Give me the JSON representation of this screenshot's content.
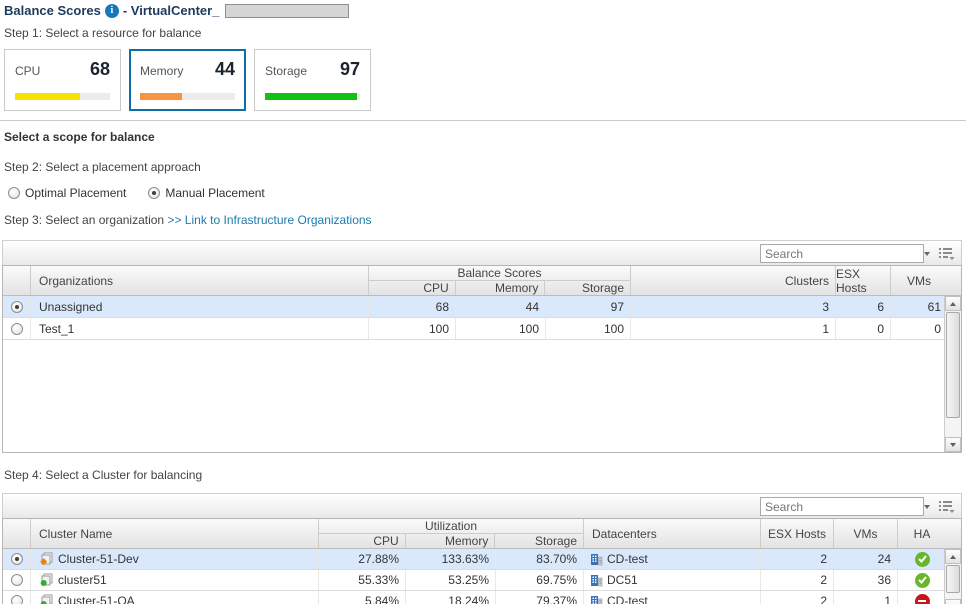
{
  "header": {
    "title": "Balance Scores",
    "suffix": "- VirtualCenter_",
    "info_icon": "info-icon"
  },
  "step1": {
    "label": "Step 1: Select a resource for balance",
    "cards": [
      {
        "name": "CPU",
        "value": "68",
        "pct": 68,
        "color": "#f6e300",
        "selected": false
      },
      {
        "name": "Memory",
        "value": "44",
        "pct": 44,
        "color": "#f5953e",
        "selected": true
      },
      {
        "name": "Storage",
        "value": "97",
        "pct": 97,
        "color": "#12c212",
        "selected": false
      }
    ]
  },
  "scope_header": "Select a scope for balance",
  "step2": {
    "label": "Step 2: Select a placement approach",
    "options": [
      {
        "label": "Optimal Placement",
        "selected": false
      },
      {
        "label": "Manual Placement",
        "selected": true
      }
    ]
  },
  "step3": {
    "label": "Step 3: Select an organization",
    "link": ">> Link to Infrastructure Organizations"
  },
  "org_table": {
    "search_placeholder": "Search",
    "group_header": "Balance Scores",
    "columns": {
      "organizations": "Organizations",
      "cpu": "CPU",
      "memory": "Memory",
      "storage": "Storage",
      "clusters": "Clusters",
      "esx_hosts": "ESX Hosts",
      "vms": "VMs"
    },
    "rows": [
      {
        "selected": true,
        "organization": "Unassigned",
        "cpu": "68",
        "memory": "44",
        "storage": "97",
        "clusters": "3",
        "esx_hosts": "6",
        "vms": "61"
      },
      {
        "selected": false,
        "organization": "Test_1",
        "cpu": "100",
        "memory": "100",
        "storage": "100",
        "clusters": "1",
        "esx_hosts": "0",
        "vms": "0"
      }
    ]
  },
  "step4": {
    "label": "Step 4: Select a Cluster for balancing"
  },
  "cluster_table": {
    "search_placeholder": "Search",
    "group_header": "Utilization",
    "columns": {
      "name": "Cluster Name",
      "cpu": "CPU",
      "memory": "Memory",
      "storage": "Storage",
      "datacenters": "Datacenters",
      "esx_hosts": "ESX Hosts",
      "vms": "VMs",
      "ha": "HA"
    },
    "rows": [
      {
        "selected": true,
        "name": "Cluster-51-Dev",
        "badge": "warning",
        "cpu": "27.88%",
        "memory": "133.63%",
        "storage": "83.70%",
        "datacenter": "CD-test",
        "esx_hosts": "2",
        "vms": "24",
        "ha": "ok"
      },
      {
        "selected": false,
        "name": "cluster51",
        "badge": "ok",
        "cpu": "55.33%",
        "memory": "53.25%",
        "storage": "69.75%",
        "datacenter": "DC51",
        "esx_hosts": "2",
        "vms": "36",
        "ha": "ok"
      },
      {
        "selected": false,
        "name": "Cluster-51-QA",
        "badge": "ok",
        "cpu": "5.84%",
        "memory": "18.24%",
        "storage": "79.37%",
        "datacenter": "CD-test",
        "esx_hosts": "2",
        "vms": "1",
        "ha": "blocked"
      }
    ]
  },
  "status_colors": {
    "ok_green": "#69b52c",
    "blocked_red": "#c4161c",
    "warning_orange": "#ef8200"
  }
}
